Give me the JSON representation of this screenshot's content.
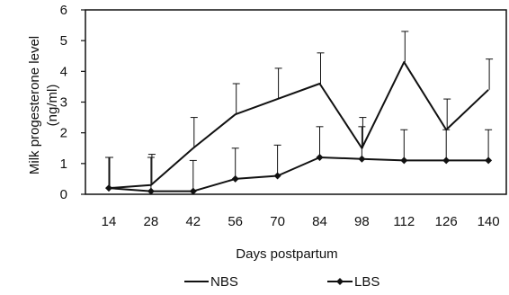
{
  "chart_data": {
    "type": "line",
    "title": "",
    "xlabel": "Days postpartum",
    "ylabel": "Milk progesterone level (ng/ml)",
    "ylabel_line1": "Milk progesterone level",
    "ylabel_line2": "(ng/ml)",
    "categories": [
      "14",
      "28",
      "42",
      "56",
      "70",
      "84",
      "98",
      "112",
      "126",
      "140"
    ],
    "ylim": [
      0,
      6
    ],
    "yticks": [
      "0",
      "1",
      "2",
      "3",
      "4",
      "5",
      "6"
    ],
    "grid": false,
    "legend_position": "bottom",
    "series": [
      {
        "name": "NBS",
        "marker": "none",
        "values": [
          0.2,
          0.3,
          1.5,
          2.6,
          3.1,
          3.6,
          1.5,
          4.3,
          2.1,
          3.4
        ],
        "error_upper": [
          1.2,
          1.3,
          2.5,
          3.6,
          4.1,
          4.6,
          2.5,
          5.3,
          3.1,
          4.4
        ]
      },
      {
        "name": "LBS",
        "marker": "diamond",
        "values": [
          0.2,
          0.1,
          0.1,
          0.5,
          0.6,
          1.2,
          1.15,
          1.1,
          1.1,
          1.1
        ],
        "error_upper": [
          1.2,
          1.2,
          1.1,
          1.5,
          1.6,
          2.2,
          2.2,
          2.1,
          2.1,
          2.1
        ]
      }
    ],
    "colors": {
      "line": "#111111",
      "axis": "#111111",
      "background": "#ffffff"
    }
  }
}
